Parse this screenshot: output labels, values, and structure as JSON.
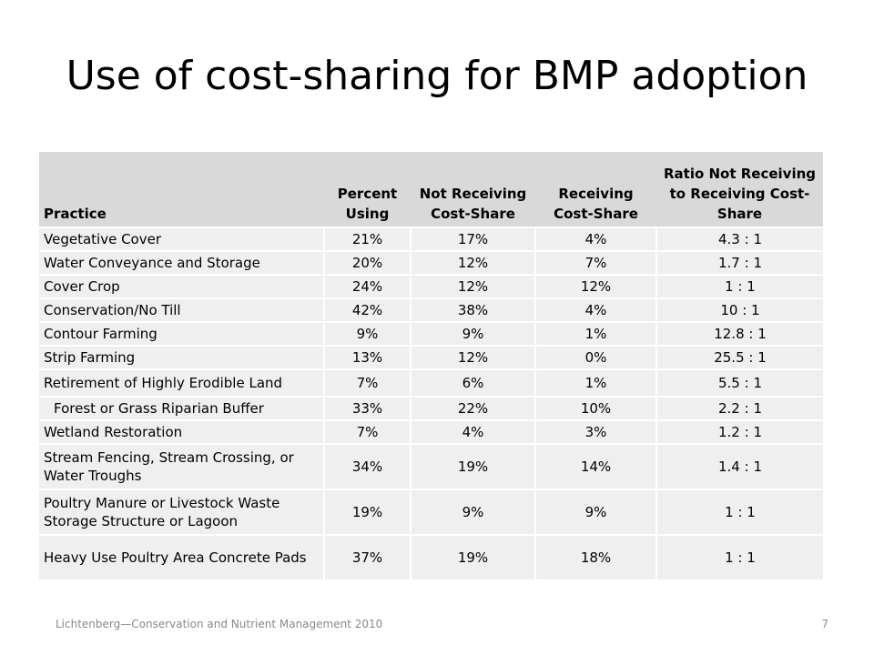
{
  "slide": {
    "title": "Use of cost-sharing for BMP adoption",
    "footer": "Lichtenberg—Conservation and Nutrient Management 2010",
    "page_number": "7"
  },
  "table": {
    "headers": [
      "Practice",
      "Percent Using",
      "Not Receiving Cost-Share",
      "Receiving Cost-Share",
      "Ratio Not Receiving to Receiving Cost-Share"
    ],
    "rows": [
      [
        "Vegetative Cover",
        "21%",
        "17%",
        "4%",
        "4.3 : 1"
      ],
      [
        "Water Conveyance and Storage",
        "20%",
        "12%",
        "7%",
        "1.7 : 1"
      ],
      [
        "Cover Crop",
        "24%",
        "12%",
        "12%",
        "1 : 1"
      ],
      [
        "Conservation/No Till",
        "42%",
        "38%",
        "4%",
        "10 : 1"
      ],
      [
        "Contour Farming",
        "9%",
        "9%",
        "1%",
        "12.8 : 1"
      ],
      [
        "Strip Farming",
        "13%",
        "12%",
        "0%",
        "25.5 : 1"
      ],
      [
        "Retirement of Highly Erodible Land",
        "7%",
        "6%",
        "1%",
        "5.5 : 1"
      ],
      [
        "Forest or Grass Riparian Buffer",
        "33%",
        "22%",
        "10%",
        "2.2 : 1"
      ],
      [
        "Wetland Restoration",
        "7%",
        "4%",
        "3%",
        "1.2 : 1"
      ],
      [
        "Stream Fencing, Stream Crossing, or Water Troughs",
        "34%",
        "19%",
        "14%",
        "1.4 : 1"
      ],
      [
        "Poultry Manure or Livestock Waste Storage Structure or Lagoon",
        "19%",
        "9%",
        "9%",
        "1 : 1"
      ],
      [
        "Heavy Use Poultry Area Concrete Pads",
        "37%",
        "19%",
        "18%",
        "1 : 1"
      ]
    ]
  }
}
